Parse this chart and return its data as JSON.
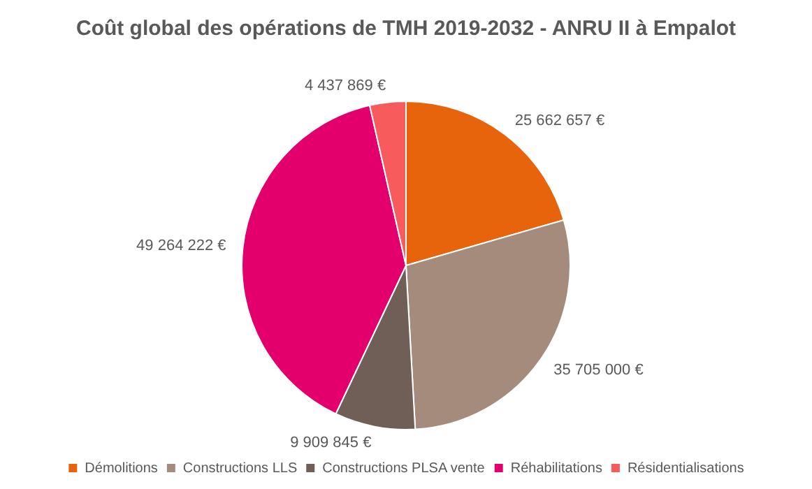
{
  "chart_data": {
    "type": "pie",
    "title": "Coût global des opérations de TMH 2019-2032 - ANRU II à Empalot",
    "categories": [
      "Démolitions",
      "Constructions LLS",
      "Constructions PLSA vente",
      "Réhabilitations",
      "Résidentialisations"
    ],
    "values": [
      25662657,
      35705000,
      9909845,
      49264222,
      4437869
    ],
    "value_labels": [
      "25 662 657 €",
      "35 705 000 €",
      "9 909 845 €",
      "49 264 222 €",
      "4 437 869 €"
    ],
    "colors": [
      "#e8640c",
      "#a48b7b",
      "#6f5f57",
      "#e3006d",
      "#f75b5b"
    ],
    "legend": "bottom"
  }
}
